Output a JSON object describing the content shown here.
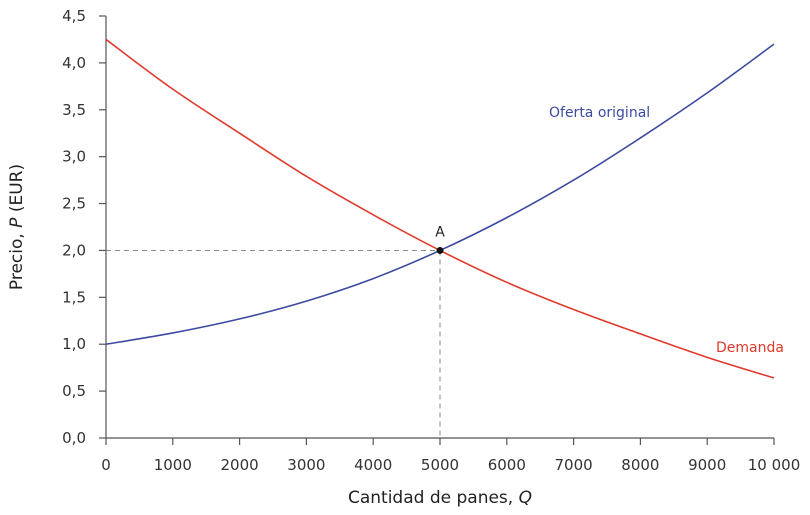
{
  "chart_data": {
    "type": "line",
    "title": "",
    "xlabel": "Cantidad de panes, Q",
    "ylabel": "Precio, P (EUR)",
    "xlim": [
      0,
      10000
    ],
    "ylim": [
      0,
      4.5
    ],
    "grid": false,
    "x_ticks": [
      0,
      1000,
      2000,
      3000,
      4000,
      5000,
      6000,
      7000,
      8000,
      9000,
      10000
    ],
    "x_tick_labels": [
      "0",
      "1000",
      "2000",
      "3000",
      "4000",
      "5000",
      "6000",
      "7000",
      "8000",
      "9000",
      "10 000"
    ],
    "y_ticks": [
      0,
      0.5,
      1.0,
      1.5,
      2.0,
      2.5,
      3.0,
      3.5,
      4.0,
      4.5
    ],
    "y_tick_labels": [
      "0,0",
      "0,5",
      "1,0",
      "1,5",
      "2,0",
      "2,5",
      "3,0",
      "3,5",
      "4,0",
      "4,5"
    ],
    "x": [
      0,
      1000,
      2000,
      3000,
      4000,
      5000,
      6000,
      7000,
      8000,
      9000,
      10000
    ],
    "series": [
      {
        "name": "Oferta original",
        "color": "#3c4aa0",
        "values": [
          1.0,
          1.12,
          1.27,
          1.46,
          1.7,
          2.0,
          2.35,
          2.75,
          3.2,
          3.68,
          4.2
        ]
      },
      {
        "name": "Demanda",
        "color": "#e03a2c",
        "values": [
          4.25,
          3.72,
          3.25,
          2.79,
          2.38,
          2.0,
          1.66,
          1.37,
          1.11,
          0.86,
          0.64
        ]
      }
    ],
    "annotations": [
      {
        "label": "A",
        "x": 5000,
        "y": 2.0,
        "type": "equilibrium-point",
        "dashed_guides": true
      }
    ],
    "legend_position": "inline-labels"
  },
  "labels": {
    "supply": "Oferta original",
    "demand": "Demanda",
    "point_a": "A",
    "xlabel_main": "Cantidad de panes, ",
    "xlabel_var": "Q",
    "ylabel_main": "Precio, ",
    "ylabel_var": "P",
    "ylabel_unit": " (EUR)"
  },
  "colors": {
    "supply": "#3c4aa0",
    "demand": "#e03a2c",
    "axis": "#555555",
    "guide": "#8a8a8a"
  }
}
